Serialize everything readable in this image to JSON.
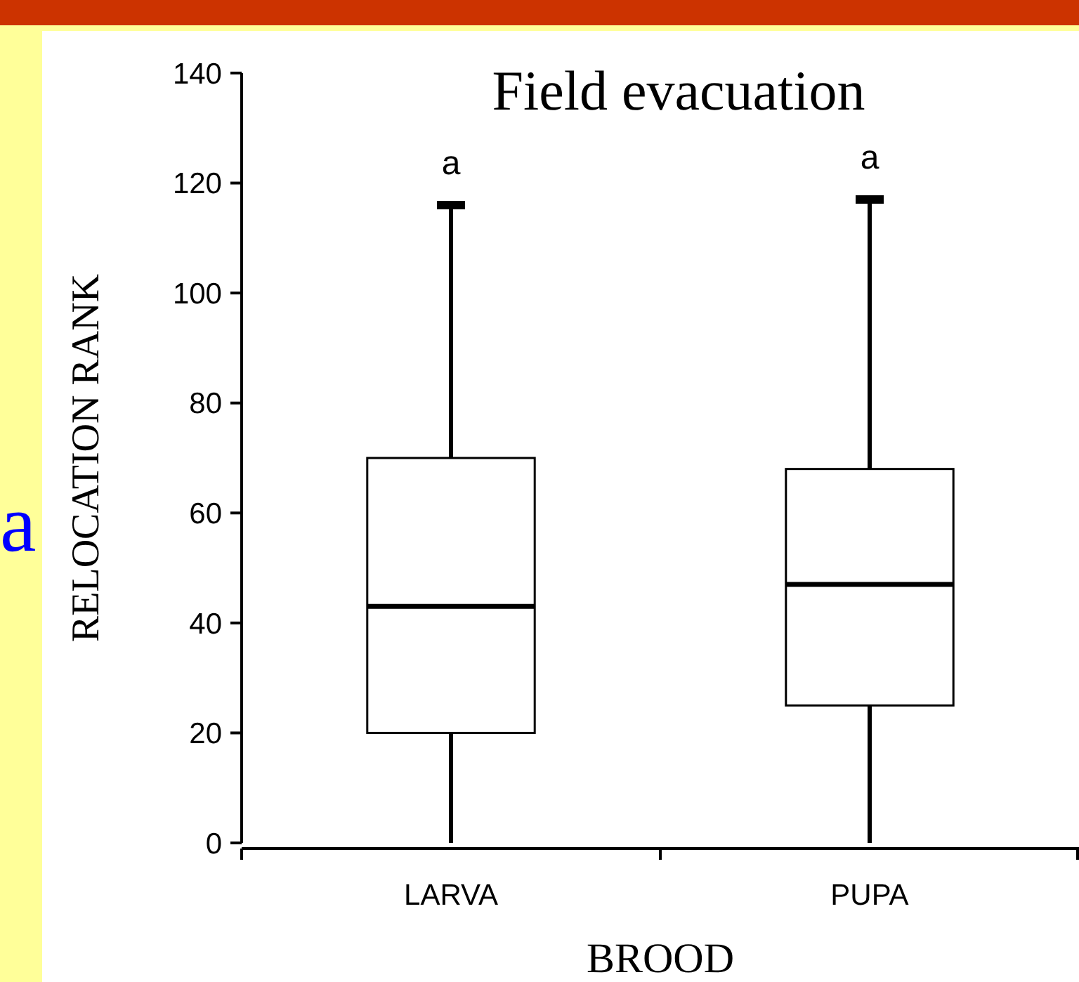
{
  "chart_data": {
    "type": "box",
    "title": "Field evacuation",
    "xlabel": "BROOD",
    "ylabel": "RELOCATION RANK",
    "categories": [
      "LARVA",
      "PUPA"
    ],
    "boxes": [
      {
        "low": 0,
        "q1": 20,
        "median": 43,
        "q3": 70,
        "high": 116
      },
      {
        "low": 0,
        "q1": 25,
        "median": 47,
        "q3": 68,
        "high": 117
      }
    ],
    "color": "#000000",
    "ylim": [
      0,
      140
    ],
    "yticks": [
      0,
      20,
      40,
      60,
      80,
      100,
      120,
      140
    ],
    "annotations": [
      "a",
      "a",
      "a"
    ]
  }
}
